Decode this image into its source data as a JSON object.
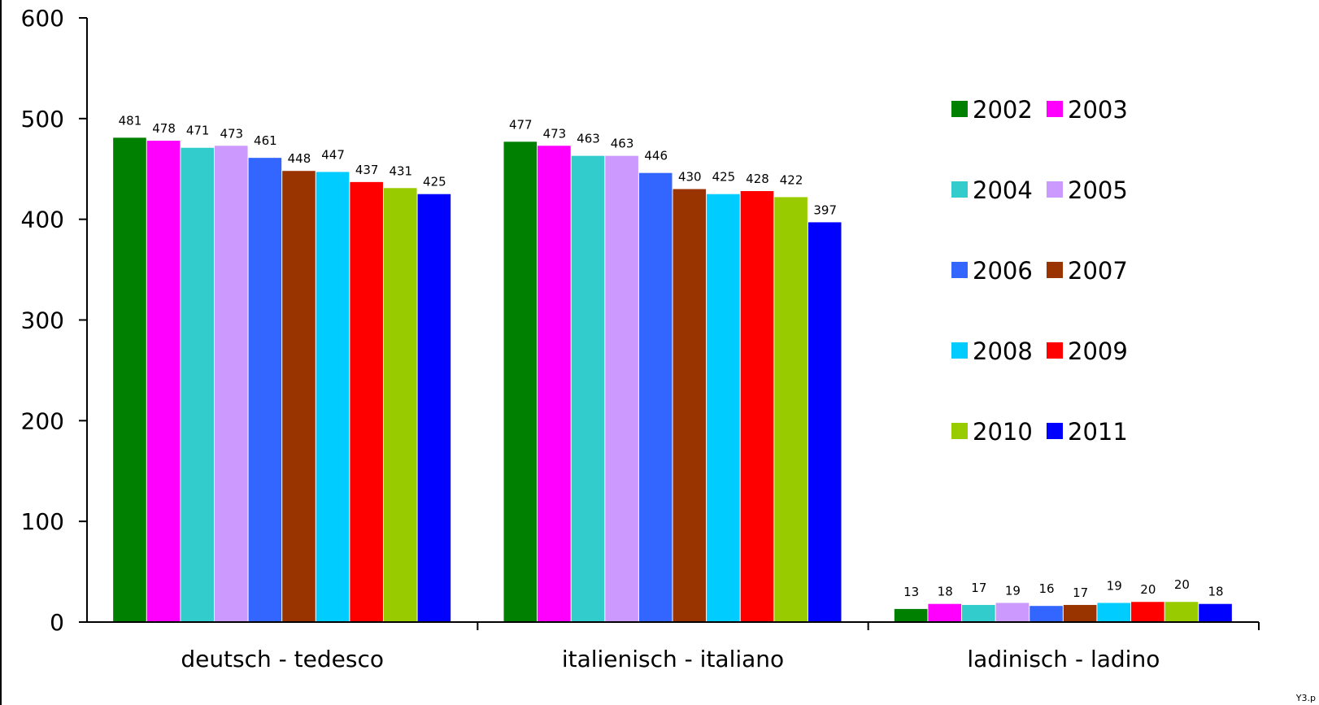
{
  "chart_data": {
    "type": "bar",
    "categories": [
      "deutsch - tedesco",
      "italienisch - italiano",
      "ladinisch - ladino"
    ],
    "series": [
      {
        "name": "2002",
        "color": "#008000",
        "values": [
          481,
          477,
          13
        ]
      },
      {
        "name": "2003",
        "color": "#ff00ff",
        "values": [
          478,
          473,
          18
        ]
      },
      {
        "name": "2004",
        "color": "#33cccc",
        "values": [
          471,
          463,
          17
        ]
      },
      {
        "name": "2005",
        "color": "#cc99ff",
        "values": [
          473,
          463,
          19
        ]
      },
      {
        "name": "2006",
        "color": "#3366ff",
        "values": [
          461,
          446,
          16
        ]
      },
      {
        "name": "2007",
        "color": "#993300",
        "values": [
          448,
          430,
          17
        ]
      },
      {
        "name": "2008",
        "color": "#00ccff",
        "values": [
          447,
          425,
          19
        ]
      },
      {
        "name": "2009",
        "color": "#ff0000",
        "values": [
          437,
          428,
          20
        ]
      },
      {
        "name": "2010",
        "color": "#99cc00",
        "values": [
          431,
          422,
          20
        ]
      },
      {
        "name": "2011",
        "color": "#0000ff",
        "values": [
          425,
          397,
          18
        ]
      }
    ],
    "yticks": [
      "0",
      "100",
      "200",
      "300",
      "400",
      "500",
      "600"
    ],
    "ylim": [
      0,
      600
    ],
    "title": "",
    "xlabel": "",
    "ylabel": "",
    "grid": false,
    "legend_position": "right",
    "data_labels": true
  },
  "footer": {
    "code": "Y3.p"
  }
}
